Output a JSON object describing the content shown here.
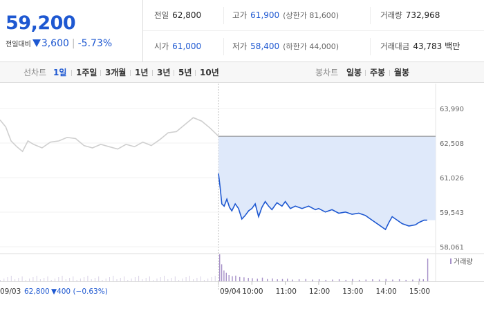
{
  "summary": {
    "price": "59,200",
    "change_label": "전일대비",
    "change_value": "3,600",
    "change_pct": "-5.73%"
  },
  "stats": {
    "prev_close": {
      "label": "전일",
      "value": "62,800"
    },
    "open": {
      "label": "시가",
      "value": "61,000"
    },
    "high": {
      "label": "고가",
      "value": "61,900",
      "limit": "(상한가 81,600)"
    },
    "low": {
      "label": "저가",
      "value": "58,400",
      "limit": "(하한가 44,000)"
    },
    "volume": {
      "label": "거래량",
      "value": "732,968"
    },
    "turnover": {
      "label": "거래대금",
      "value": "43,783",
      "unit": "백만"
    }
  },
  "period_tabs": {
    "label": "선차트",
    "items": [
      "1일",
      "1주일",
      "3개월",
      "1년",
      "3년",
      "5년",
      "10년"
    ],
    "active": "1일"
  },
  "candle_tabs": {
    "label": "봉차트",
    "items": [
      "일봉",
      "주봉",
      "월봉"
    ]
  },
  "colors": {
    "accent": "#1e58d1",
    "fill": "#dfe9fa",
    "prev_line": "#cfcfcf",
    "volume_bar": "#a690c8"
  },
  "icons": {
    "change_direction": "down-triangle-icon"
  },
  "chart_data": {
    "type": "line",
    "y_ticks": [
      "63,990",
      "62,508",
      "61,026",
      "59,543",
      "58,061"
    ],
    "y_tick_values": [
      63990,
      62508,
      61026,
      59543,
      58061
    ],
    "reference_line": 62800,
    "x_labels": [
      "09/04",
      "10:00",
      "11:00",
      "12:00",
      "13:00",
      "14:00",
      "15:00"
    ],
    "x_label_times": [
      9.0,
      10.0,
      11.0,
      12.0,
      13.0,
      14.0,
      15.0
    ],
    "prev_day_label": {
      "date": "09/03",
      "close": "62,800",
      "change": "▼400 (−0.63%)"
    },
    "volume_legend": "거래량",
    "series": [
      {
        "name": "09/03",
        "x": [
          9.0,
          9.17,
          9.33,
          9.5,
          9.67,
          9.83,
          10.0,
          10.25,
          10.5,
          10.75,
          11.0,
          11.25,
          11.5,
          11.75,
          12.0,
          12.25,
          12.5,
          12.75,
          13.0,
          13.25,
          13.5,
          13.75,
          14.0,
          14.25,
          14.5,
          14.75,
          15.0,
          15.25,
          15.5
        ],
        "values": [
          63500,
          63200,
          62600,
          62350,
          62150,
          62600,
          62450,
          62300,
          62550,
          62600,
          62750,
          62700,
          62400,
          62300,
          62450,
          62350,
          62250,
          62450,
          62350,
          62550,
          62400,
          62650,
          62950,
          63000,
          63300,
          63600,
          63450,
          63150,
          62800
        ]
      },
      {
        "name": "09/04",
        "x": [
          9.0,
          9.05,
          9.1,
          9.17,
          9.25,
          9.33,
          9.4,
          9.5,
          9.6,
          9.7,
          9.8,
          9.9,
          10.0,
          10.1,
          10.2,
          10.3,
          10.4,
          10.5,
          10.6,
          10.75,
          10.9,
          11.0,
          11.15,
          11.3,
          11.5,
          11.7,
          11.9,
          12.0,
          12.2,
          12.4,
          12.6,
          12.8,
          13.0,
          13.2,
          13.4,
          13.6,
          13.8,
          14.0,
          14.1,
          14.2,
          14.3,
          14.5,
          14.7,
          14.9,
          15.0,
          15.15,
          15.25
        ],
        "values": [
          61200,
          60600,
          59900,
          59800,
          60100,
          59750,
          59600,
          59900,
          59700,
          59250,
          59400,
          59600,
          59700,
          59900,
          59350,
          59750,
          60000,
          59800,
          59650,
          59950,
          59800,
          60000,
          59700,
          59800,
          59700,
          59800,
          59650,
          59700,
          59550,
          59650,
          59500,
          59550,
          59450,
          59500,
          59400,
          59200,
          59000,
          58800,
          59100,
          59350,
          59250,
          59050,
          58950,
          59000,
          59100,
          59200,
          59200
        ]
      }
    ],
    "volume": {
      "x": [
        9.02,
        9.08,
        9.15,
        9.22,
        9.3,
        9.4,
        9.5,
        9.62,
        9.75,
        9.88,
        10.0,
        10.15,
        10.3,
        10.45,
        10.6,
        10.75,
        10.9,
        11.05,
        11.2,
        11.4,
        11.6,
        11.8,
        12.0,
        12.2,
        12.4,
        12.6,
        12.8,
        13.0,
        13.2,
        13.4,
        13.6,
        13.8,
        14.0,
        14.2,
        14.4,
        14.6,
        14.8,
        15.0,
        15.12,
        15.25
      ],
      "values": [
        95,
        60,
        38,
        30,
        22,
        18,
        20,
        15,
        14,
        12,
        11,
        9,
        13,
        8,
        10,
        7,
        8,
        9,
        6,
        7,
        8,
        6,
        7,
        5,
        6,
        7,
        5,
        8,
        5,
        6,
        7,
        6,
        8,
        6,
        7,
        5,
        6,
        9,
        7,
        80
      ]
    }
  }
}
